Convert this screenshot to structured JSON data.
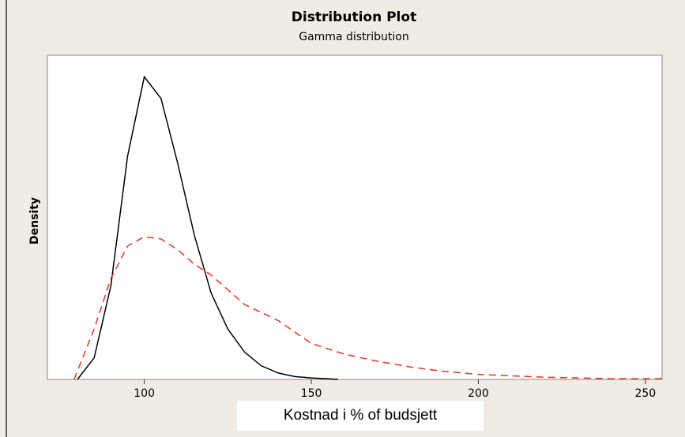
{
  "chart_data": {
    "type": "line",
    "title": "Distribution Plot",
    "subtitle": "Gamma distribution",
    "x_label": "Kostnad i % of budsjett",
    "y_label": "Density",
    "xlim": [
      71,
      255
    ],
    "ylim": [
      0,
      0.045
    ],
    "xticks": [
      100,
      150,
      200,
      250
    ],
    "series": [
      {
        "color": "#000000",
        "dash": false,
        "x": [
          80,
          85,
          90,
          95,
          100,
          105,
          110,
          115,
          120,
          125,
          130,
          135,
          140,
          145,
          150,
          155,
          158
        ],
        "values": [
          0,
          0.003,
          0.013,
          0.031,
          0.042,
          0.039,
          0.03,
          0.02,
          0.012,
          0.007,
          0.0038,
          0.0019,
          0.0009,
          0.0004,
          0.0002,
          0.0001,
          0
        ]
      },
      {
        "color": "#e8321e",
        "dash": true,
        "x": [
          79,
          85,
          90,
          95,
          100,
          105,
          110,
          115,
          120,
          130,
          140,
          150,
          160,
          170,
          180,
          190,
          200,
          210,
          220,
          230,
          240,
          250,
          255
        ],
        "values": [
          0,
          0.007,
          0.014,
          0.0185,
          0.0198,
          0.0195,
          0.018,
          0.016,
          0.0145,
          0.0104,
          0.0082,
          0.005,
          0.0035,
          0.0025,
          0.0017,
          0.0011,
          0.0007,
          0.0005,
          0.0003,
          0.0002,
          0.0001,
          0.0001,
          0.0001
        ]
      }
    ]
  }
}
